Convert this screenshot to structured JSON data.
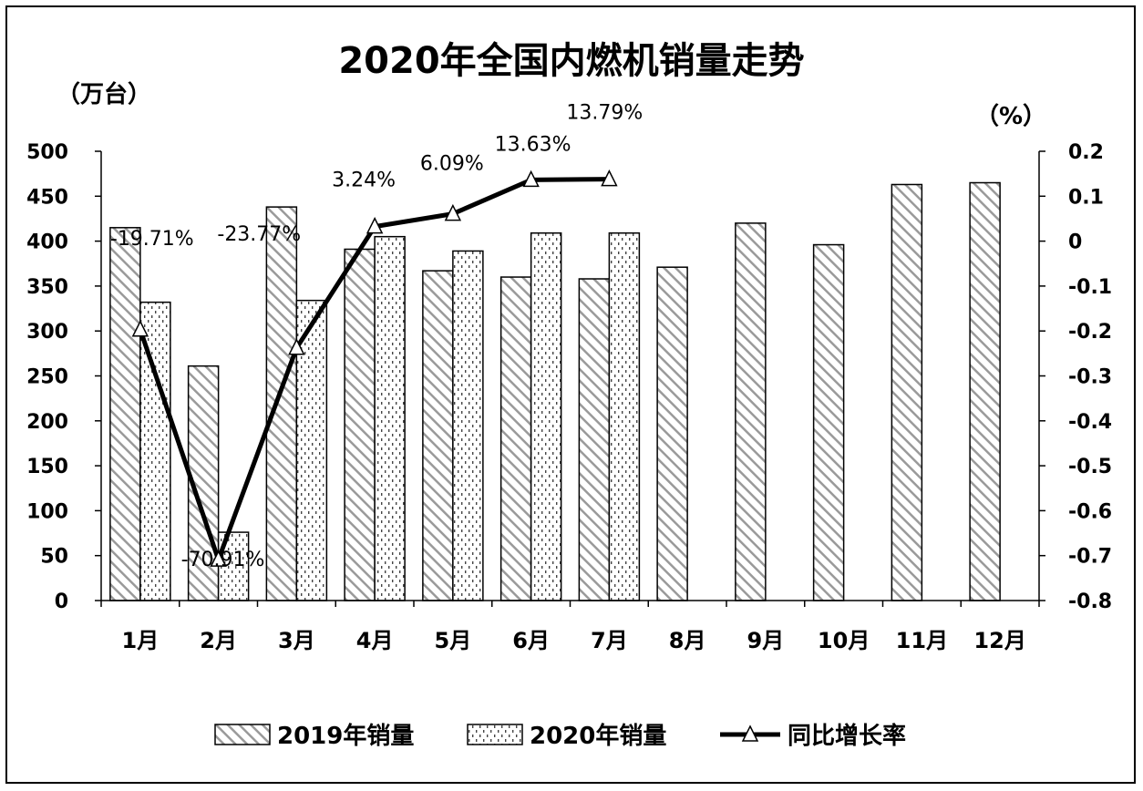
{
  "chart_data": {
    "type": "bar",
    "title": "2020年全国内燃机销量走势",
    "left_unit": "（万台）",
    "right_unit": "（%）",
    "categories": [
      "1月",
      "2月",
      "3月",
      "4月",
      "5月",
      "6月",
      "7月",
      "8月",
      "9月",
      "10月",
      "11月",
      "12月"
    ],
    "ylim": [
      0,
      500
    ],
    "yticks": [
      "0",
      "50",
      "100",
      "150",
      "200",
      "250",
      "300",
      "350",
      "400",
      "450",
      "500"
    ],
    "y2lim": [
      -0.8,
      0.2
    ],
    "y2ticks": [
      "-0.8",
      "-0.7",
      "-0.6",
      "-0.5",
      "-0.4",
      "-0.3",
      "-0.2",
      "-0.1",
      "0",
      "0.1",
      "0.2"
    ],
    "series": [
      {
        "name": "2019年销量",
        "kind": "bar",
        "pattern": "diagonal-hatch",
        "values": [
          415,
          261,
          438,
          391,
          367,
          360,
          358,
          371,
          420,
          396,
          463,
          465
        ]
      },
      {
        "name": "2020年销量",
        "kind": "bar",
        "pattern": "dots",
        "values": [
          332,
          76,
          334,
          405,
          389,
          409,
          409,
          null,
          null,
          null,
          null,
          null
        ]
      },
      {
        "name": "同比增长率",
        "kind": "line",
        "axis": "right",
        "marker": "triangle",
        "values": [
          -0.1971,
          -0.7091,
          -0.2377,
          0.0324,
          0.0609,
          0.1363,
          0.1379,
          null,
          null,
          null,
          null,
          null
        ],
        "labels": [
          "-19.71%",
          "-70.91%",
          "-23.77%",
          "3.24%",
          "6.09%",
          "13.63%",
          "13.79%",
          null,
          null,
          null,
          null,
          null
        ]
      }
    ],
    "legend_position": "bottom",
    "grid": false
  }
}
